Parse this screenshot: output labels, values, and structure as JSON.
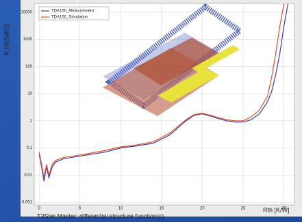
{
  "chart_data": {
    "type": "line",
    "ylabel": "K [W2s/K2]",
    "xlabel": "Rth [K/W]",
    "caption": "T3Ster Master: differential structure function(s)",
    "x": [
      0,
      0.3,
      0.6,
      0.9,
      1.2,
      1.6,
      2,
      3,
      5,
      8,
      10,
      12,
      14,
      16,
      18,
      19,
      20,
      21,
      22,
      23,
      24,
      25,
      26,
      27,
      28,
      28.5,
      29,
      29.5,
      30,
      30.5
    ],
    "series": [
      {
        "name": "TDA150_Measurement",
        "color": "#3b3bb0",
        "values": [
          0.06,
          0.02,
          0.006,
          0.02,
          0.008,
          0.02,
          0.03,
          0.04,
          0.05,
          0.07,
          0.1,
          0.12,
          0.15,
          0.3,
          1,
          1.6,
          1.8,
          1.5,
          1.2,
          1,
          0.9,
          0.9,
          1.1,
          1.8,
          5,
          12,
          50,
          300,
          3000,
          20000
        ]
      },
      {
        "name": "TDA150_Simulation",
        "color": "#e0502a",
        "values": [
          0.07,
          0.025,
          0.008,
          0.025,
          0.01,
          0.025,
          0.035,
          0.045,
          0.055,
          0.08,
          0.11,
          0.13,
          0.17,
          0.35,
          1.1,
          1.7,
          1.9,
          1.6,
          1.3,
          1.1,
          1,
          1,
          1.4,
          2.5,
          8,
          40,
          300,
          3000,
          20000,
          null
        ]
      }
    ],
    "log_y": true,
    "grid": true,
    "xlim": [
      -0.6,
      31.3
    ],
    "xticks": [
      0,
      5,
      10,
      15,
      20,
      25,
      30
    ],
    "ylim": [
      0.0008,
      21000
    ],
    "yticks": [
      0.001,
      0.01,
      0.1,
      1,
      10,
      100,
      1000,
      10000
    ],
    "legend": "top-left"
  }
}
